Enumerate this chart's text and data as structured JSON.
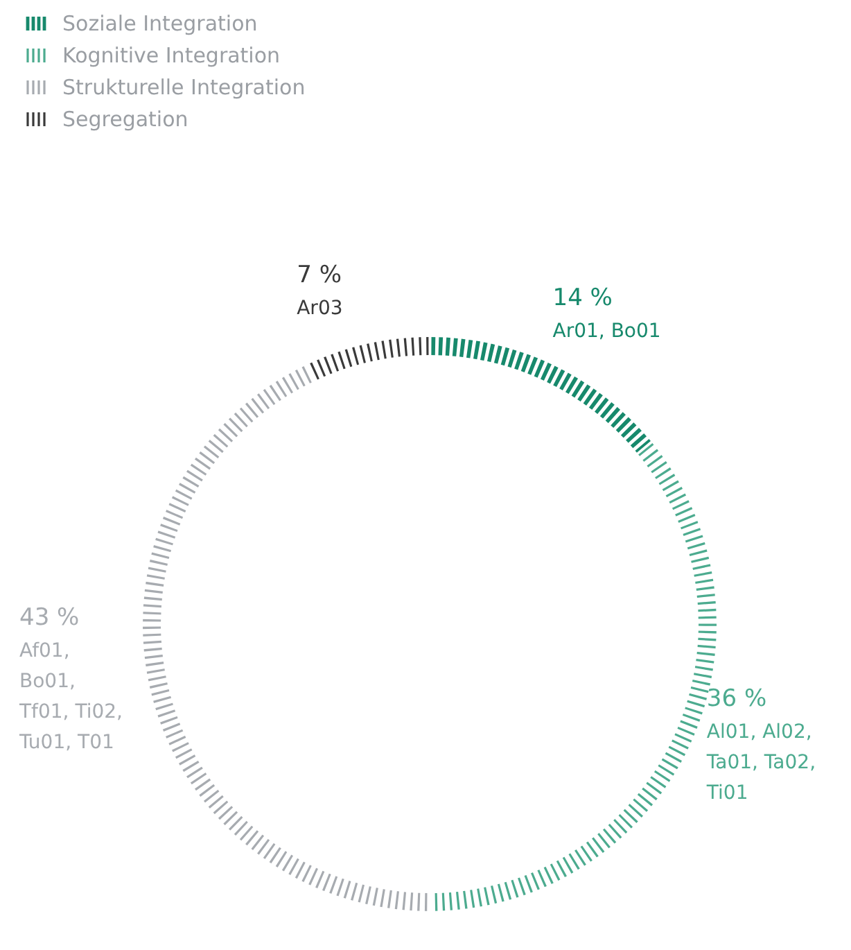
{
  "chart_data": {
    "type": "donut",
    "categories": [
      "Soziale Integration",
      "Kognitive Integration",
      "Strukturelle Integration",
      "Segregation"
    ],
    "values": [
      14,
      36,
      43,
      7
    ],
    "colors": [
      "#17896c",
      "#4cab8f",
      "#a7abb0",
      "#3a3a3a"
    ],
    "value_labels": [
      "14 %",
      "36 %",
      "43 %",
      "7 %"
    ],
    "annotations": [
      "Ar01, Bo01",
      "Al01, Al02,\nTa01, Ta02,\nTi01",
      "Af01,\nBo01,\nTf01, Ti02,\nTu01, T01",
      "Ar03"
    ],
    "legend": "top left"
  }
}
